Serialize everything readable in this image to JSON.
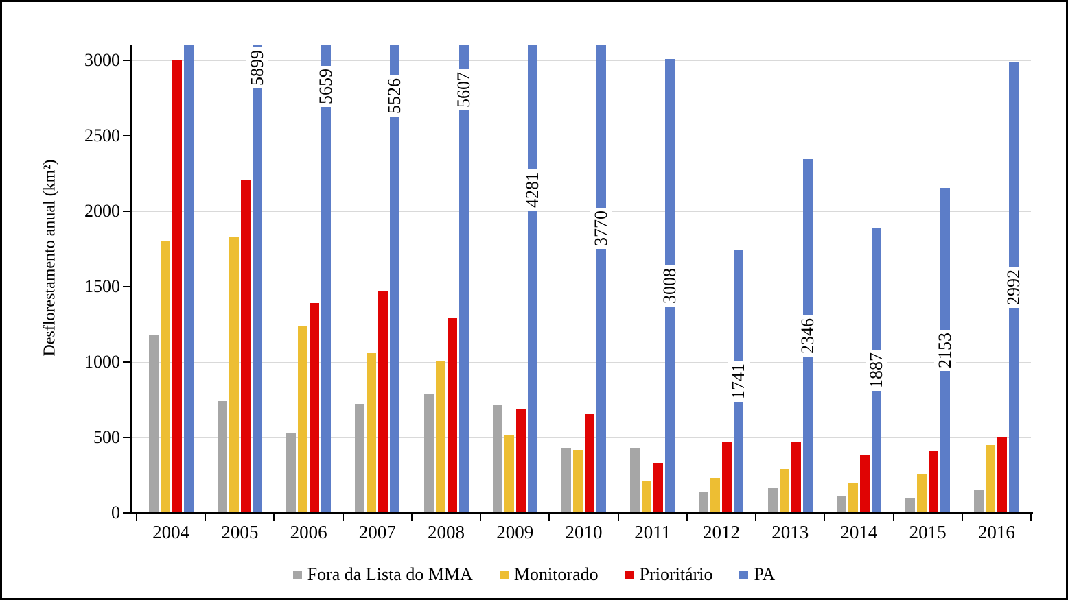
{
  "chart_data": {
    "type": "bar",
    "title": "",
    "xlabel": "",
    "ylabel": "Desflorestamento anual (km²)",
    "categories": [
      "2004",
      "2005",
      "2006",
      "2007",
      "2008",
      "2009",
      "2010",
      "2011",
      "2012",
      "2013",
      "2014",
      "2015",
      "2016"
    ],
    "series": [
      {
        "name": "Fora da Lista do MMA",
        "color": "#A6A6A6",
        "values": [
          1180,
          740,
          530,
          725,
          790,
          720,
          430,
          430,
          135,
          165,
          110,
          100,
          155
        ]
      },
      {
        "name": "Monitorado",
        "color": "#EDBE33",
        "values": [
          1805,
          1830,
          1235,
          1060,
          1005,
          515,
          420,
          210,
          230,
          290,
          195,
          260,
          450
        ]
      },
      {
        "name": "Prioritário",
        "color": "#E00404",
        "values": [
          3005,
          2210,
          1390,
          1475,
          1290,
          685,
          655,
          330,
          470,
          470,
          385,
          410,
          505
        ]
      },
      {
        "name": "PA",
        "color": "#5C7DC8",
        "values": [
          null,
          5899,
          5659,
          5526,
          5607,
          4281,
          3770,
          3008,
          1741,
          2346,
          1887,
          2153,
          2992
        ],
        "data_labels": [
          "",
          "5899",
          "5659",
          "5526",
          "5607",
          "4281",
          "3770",
          "3008",
          "1741",
          "2346",
          "1887",
          "2153",
          "2992"
        ],
        "data_label_rotation_deg": -90,
        "clipped_to_plot_top": true
      }
    ],
    "yticks": [
      0,
      500,
      1000,
      1500,
      2000,
      2500,
      3000
    ],
    "ylim": [
      0,
      3100
    ],
    "grid": "horizontal",
    "gridline_color": "#D9D9D9",
    "axis_color": "#000000",
    "legend_position": "bottom"
  }
}
